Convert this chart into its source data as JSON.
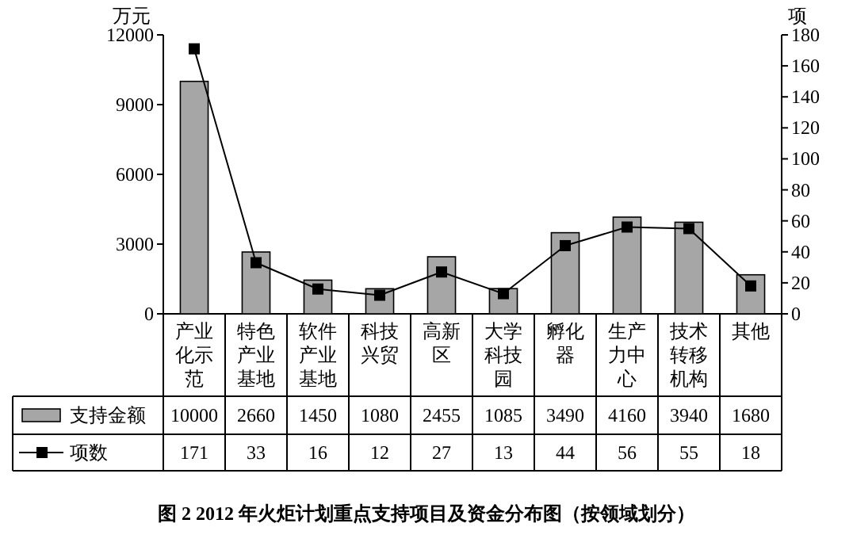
{
  "chart_data": {
    "type": "bar",
    "title": "图 2 2012 年火炬计划重点支持项目及资金分布图（按领域划分）",
    "ylabel": "万元",
    "y2label": "项",
    "categories": [
      "产业化示范",
      "特色产业基地",
      "软件产业基地",
      "科技兴贸",
      "高新区",
      "大学科技园",
      "孵化器",
      "生产力中心",
      "技术转移机构",
      "其他"
    ],
    "series": [
      {
        "name": "支持金额",
        "color": "#a6a6a6",
        "values": [
          10000,
          2660,
          1450,
          1080,
          2455,
          1085,
          3490,
          4160,
          3940,
          1680
        ]
      },
      {
        "name": "项数",
        "type": "line",
        "axis": "y2",
        "color": "#000000",
        "marker": "square",
        "values": [
          171,
          33,
          16,
          12,
          27,
          13,
          44,
          56,
          55,
          18
        ]
      }
    ],
    "ylim": [
      0,
      12000
    ],
    "yticks": [
      0,
      3000,
      6000,
      9000,
      12000
    ],
    "y2lim": [
      0,
      180
    ],
    "y2ticks": [
      0,
      20,
      40,
      60,
      80,
      100,
      120,
      140,
      160,
      180
    ],
    "data_labels": true,
    "grid": false,
    "legend": "bottom left"
  }
}
